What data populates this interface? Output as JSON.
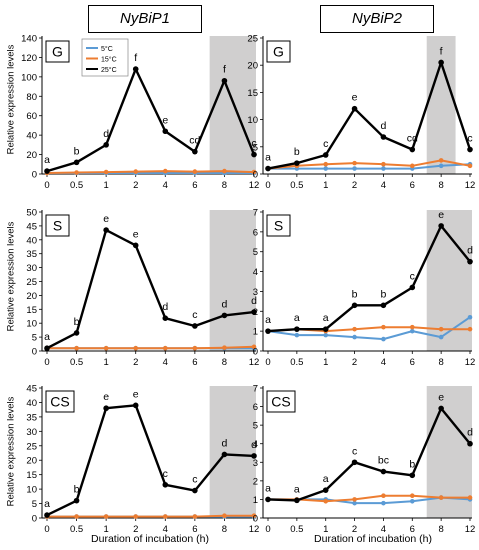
{
  "column_titles": [
    "NyBiP1",
    "NyBiP2"
  ],
  "ylabel": "Relative expression levels",
  "xlabel": "Duration of incubation (h)",
  "legend": [
    "5°C",
    "15°C",
    "25°C"
  ],
  "colors": {
    "5C": "#5b9bd5",
    "15C": "#ed7d31",
    "25C": "#000000",
    "shade": "#d0cfcf"
  },
  "chart_data": [
    {
      "type": "line",
      "panel": "G",
      "gene": "NyBiP1",
      "categories": [
        "0",
        "0.5",
        "1",
        "2",
        "4",
        "6",
        "8",
        "12"
      ],
      "ylim": [
        0,
        140
      ],
      "yticks": [
        0,
        20,
        40,
        60,
        80,
        100,
        120,
        140
      ],
      "shaded_categories": [
        "8",
        "12"
      ],
      "show_legend": true,
      "series": [
        {
          "name": "5°C",
          "values": [
            1,
            1,
            1,
            1,
            1,
            1,
            1,
            1
          ]
        },
        {
          "name": "15°C",
          "values": [
            1,
            1.5,
            2,
            2.5,
            3,
            2.5,
            3,
            2
          ]
        },
        {
          "name": "25°C",
          "values": [
            3,
            12,
            30,
            108,
            44,
            23,
            96,
            20
          ]
        }
      ],
      "labels": [
        "a",
        "b",
        "d",
        "f",
        "e",
        "cd",
        "f",
        "c"
      ]
    },
    {
      "type": "line",
      "panel": "G",
      "gene": "NyBiP2",
      "categories": [
        "0",
        "0.5",
        "1",
        "2",
        "4",
        "6",
        "8",
        "12"
      ],
      "ylim": [
        0,
        25
      ],
      "yticks": [
        0,
        5,
        10,
        15,
        20,
        25
      ],
      "shaded_categories": [
        "8"
      ],
      "show_legend": false,
      "series": [
        {
          "name": "5°C",
          "values": [
            1,
            1,
            1,
            1,
            1,
            1,
            1.5,
            1.8
          ]
        },
        {
          "name": "15°C",
          "values": [
            1,
            1.5,
            1.8,
            2,
            1.8,
            1.5,
            2.5,
            1.5
          ]
        },
        {
          "name": "25°C",
          "values": [
            1,
            2,
            3.5,
            12,
            6.8,
            4.5,
            20.5,
            4.5
          ]
        }
      ],
      "labels": [
        "a",
        "b",
        "c",
        "e",
        "d",
        "cd",
        "f",
        "c"
      ]
    },
    {
      "type": "line",
      "panel": "S",
      "gene": "NyBiP1",
      "categories": [
        "0",
        "0.5",
        "1",
        "2",
        "4",
        "6",
        "8",
        "12"
      ],
      "ylim": [
        0,
        50
      ],
      "yticks": [
        0,
        5,
        10,
        15,
        20,
        25,
        30,
        35,
        40,
        45,
        50
      ],
      "shaded_categories": [
        "8",
        "12"
      ],
      "show_legend": false,
      "series": [
        {
          "name": "5°C",
          "values": [
            1,
            1,
            1,
            1,
            1,
            1,
            1,
            1
          ]
        },
        {
          "name": "15°C",
          "values": [
            1,
            1,
            1,
            1,
            1,
            1,
            1.2,
            1.5
          ]
        },
        {
          "name": "25°C",
          "values": [
            1,
            6.5,
            43.5,
            38,
            11.8,
            9,
            12.8,
            14
          ]
        }
      ],
      "labels": [
        "a",
        "b",
        "e",
        "e",
        "d",
        "c",
        "d",
        "d"
      ]
    },
    {
      "type": "line",
      "panel": "S",
      "gene": "NyBiP2",
      "categories": [
        "0",
        "0.5",
        "1",
        "2",
        "4",
        "6",
        "8",
        "12"
      ],
      "ylim": [
        0,
        7
      ],
      "yticks": [
        0,
        1,
        2,
        3,
        4,
        5,
        6,
        7
      ],
      "shaded_categories": [
        "8",
        "12"
      ],
      "show_legend": false,
      "series": [
        {
          "name": "5°C",
          "values": [
            1,
            0.8,
            0.8,
            0.7,
            0.6,
            1,
            0.7,
            1.7
          ]
        },
        {
          "name": "15°C",
          "values": [
            1,
            1.1,
            1,
            1.1,
            1.2,
            1.2,
            1.1,
            1.1
          ]
        },
        {
          "name": "25°C",
          "values": [
            1,
            1.1,
            1.1,
            2.3,
            2.3,
            3.2,
            6.3,
            4.5
          ]
        }
      ],
      "labels": [
        "a",
        "a",
        "a",
        "b",
        "b",
        "c",
        "e",
        "d"
      ]
    },
    {
      "type": "line",
      "panel": "CS",
      "gene": "NyBiP1",
      "categories": [
        "0",
        "0.5",
        "1",
        "2",
        "4",
        "6",
        "8",
        "12"
      ],
      "ylim": [
        0,
        45
      ],
      "yticks": [
        0,
        5,
        10,
        15,
        20,
        25,
        30,
        35,
        40,
        45
      ],
      "shaded_categories": [
        "8",
        "12"
      ],
      "show_legend": false,
      "series": [
        {
          "name": "5°C",
          "values": [
            0.5,
            0.5,
            0.5,
            0.5,
            0.5,
            0.5,
            0.5,
            0.5
          ]
        },
        {
          "name": "15°C",
          "values": [
            0.5,
            0.5,
            0.5,
            0.5,
            0.5,
            0.5,
            0.8,
            0.8
          ]
        },
        {
          "name": "25°C",
          "values": [
            1,
            6,
            38,
            39,
            11.5,
            9.5,
            22,
            21.5
          ]
        }
      ],
      "labels": [
        "a",
        "b",
        "e",
        "e",
        "c",
        "c",
        "d",
        "d"
      ]
    },
    {
      "type": "line",
      "panel": "CS",
      "gene": "NyBiP2",
      "categories": [
        "0",
        "0.5",
        "1",
        "2",
        "4",
        "6",
        "8",
        "12"
      ],
      "ylim": [
        0,
        7
      ],
      "yticks": [
        0,
        1,
        2,
        3,
        4,
        5,
        6,
        7
      ],
      "shaded_categories": [
        "8",
        "12"
      ],
      "show_legend": false,
      "series": [
        {
          "name": "5°C",
          "values": [
            1,
            1,
            1,
            0.8,
            0.8,
            0.9,
            1.1,
            1
          ]
        },
        {
          "name": "15°C",
          "values": [
            1,
            1,
            0.9,
            1,
            1.2,
            1.2,
            1.1,
            1.1
          ]
        },
        {
          "name": "25°C",
          "values": [
            1,
            0.95,
            1.5,
            3,
            2.5,
            2.3,
            5.9,
            4
          ]
        }
      ],
      "labels": [
        "a",
        "a",
        "a",
        "c",
        "bc",
        "b",
        "e",
        "d"
      ]
    }
  ]
}
